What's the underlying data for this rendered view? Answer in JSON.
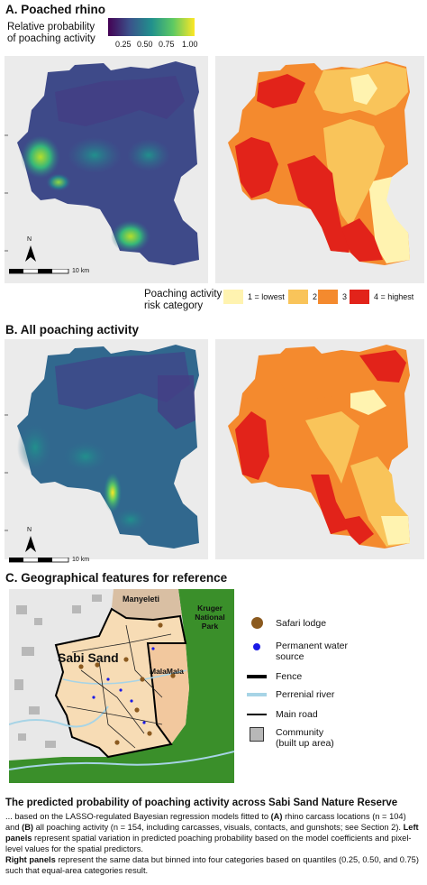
{
  "section_a": {
    "title": "A. Poached rhino"
  },
  "section_b": {
    "title": "B. All poaching activity"
  },
  "section_c": {
    "title": "C. Geographical features for reference"
  },
  "prob_legend": {
    "title_line1": "Relative probability",
    "title_line2": "of poaching activity",
    "ticks": [
      "0.25",
      "0.50",
      "0.75",
      "1.00"
    ],
    "colors": [
      "#440154",
      "#3b528b",
      "#21908d",
      "#5dc963",
      "#fde725"
    ]
  },
  "scalebar": {
    "label": "10 km",
    "north": "N"
  },
  "risk_legend": {
    "title_line1": "Poaching activity",
    "title_line2": "risk category",
    "items": [
      {
        "label": "1 = lowest",
        "color": "#fff3b0"
      },
      {
        "label": "2",
        "color": "#f9c45a"
      },
      {
        "label": "3",
        "color": "#f48a2e"
      },
      {
        "label": "4 = highest",
        "color": "#e2231a"
      }
    ]
  },
  "map_c": {
    "label_manyeleti": "Manyeleti",
    "label_kruger_1": "Kruger",
    "label_kruger_2": "National Park",
    "label_sabisand": "Sabi Sand",
    "label_malamala": "MalaMala"
  },
  "features_legend": [
    {
      "label": "Safari lodge",
      "icon": "brown-dot"
    },
    {
      "label": "Permanent water",
      "label2": "source",
      "icon": "blue-dot"
    },
    {
      "label": "Fence",
      "icon": "thick-line"
    },
    {
      "label": "Perrenial river",
      "icon": "light-blue-line"
    },
    {
      "label": "Main road",
      "icon": "thin-line"
    },
    {
      "label": "Community",
      "label2": "(built up area)",
      "icon": "grey-square"
    }
  ],
  "caption": {
    "title": "The predicted probability of poaching activity across Sabi Sand Nature Reserve",
    "p1_a": "... based on the LASSO-regulated Bayesian regression models fitted to ",
    "p1_b": "(A)",
    "p1_c": " rhino carcass locations (n = 104) and ",
    "p1_d": "(B)",
    "p1_e": " all poaching activity (n = 154, including carcasses, visuals, contacts, and gunshots; see Section 2). ",
    "p1_f": "Left panels",
    "p1_g": " represent spatial variation in predicted poaching probability based on the model coefficients and pixel-level values for the spatial predictors.",
    "p2_a": "Right panels",
    "p2_b": " represent the same data but binned into four categories based on quantiles (0.25, 0.50, and 0.75) such that equal-area categories result."
  }
}
